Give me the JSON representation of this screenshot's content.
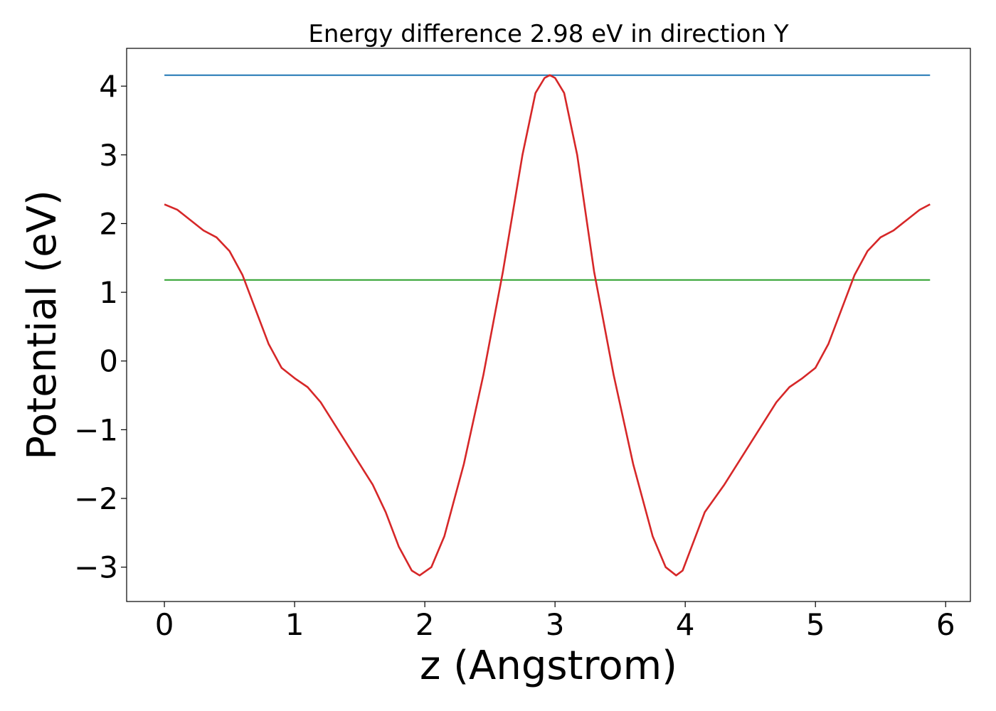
{
  "chart_data": {
    "type": "line",
    "title": "Energy difference 2.98 eV in direction Y",
    "xlabel": "z (Angstrom)",
    "ylabel": "Potential (eV)",
    "xlim": [
      -0.29,
      6.19
    ],
    "ylim": [
      -3.5,
      4.55
    ],
    "xticks": [
      0,
      1,
      2,
      3,
      4,
      5,
      6
    ],
    "yticks": [
      -3,
      -2,
      -1,
      0,
      1,
      2,
      3,
      4
    ],
    "ytick_labels": [
      "−3",
      "−2",
      "−1",
      "0",
      "1",
      "2",
      "3",
      "4"
    ],
    "grid": false,
    "series": [
      {
        "color": "#1f77b4",
        "x": [
          0,
          5.88
        ],
        "y": [
          4.16,
          4.16
        ]
      },
      {
        "color": "#2ca02c",
        "x": [
          0,
          5.88
        ],
        "y": [
          1.18,
          1.18
        ]
      },
      {
        "color": "#d62728",
        "x": [
          0,
          0.1,
          0.2,
          0.3,
          0.4,
          0.5,
          0.6,
          0.7,
          0.8,
          0.9,
          1.0,
          1.1,
          1.2,
          1.3,
          1.4,
          1.5,
          1.6,
          1.7,
          1.8,
          1.9,
          1.96,
          2.05,
          2.15,
          2.3,
          2.45,
          2.6,
          2.75,
          2.85,
          2.92,
          2.96,
          3.0,
          3.07,
          3.17,
          3.3,
          3.45,
          3.6,
          3.75,
          3.85,
          3.93,
          3.98,
          4.05,
          4.15,
          4.3,
          4.4,
          4.5,
          4.6,
          4.7,
          4.8,
          4.9,
          5.0,
          5.1,
          5.2,
          5.3,
          5.4,
          5.5,
          5.6,
          5.7,
          5.8,
          5.88
        ],
        "y": [
          2.28,
          2.2,
          2.05,
          1.9,
          1.8,
          1.6,
          1.25,
          0.75,
          0.25,
          -0.1,
          -0.25,
          -0.38,
          -0.6,
          -0.9,
          -1.2,
          -1.5,
          -1.8,
          -2.2,
          -2.7,
          -3.05,
          -3.12,
          -3.0,
          -2.55,
          -1.5,
          -0.2,
          1.3,
          3.0,
          3.9,
          4.12,
          4.16,
          4.12,
          3.9,
          3.0,
          1.3,
          -0.2,
          -1.5,
          -2.55,
          -3.0,
          -3.12,
          -3.05,
          -2.7,
          -2.2,
          -1.8,
          -1.5,
          -1.2,
          -0.9,
          -0.6,
          -0.38,
          -0.25,
          -0.1,
          0.25,
          0.75,
          1.25,
          1.6,
          1.8,
          1.9,
          2.05,
          2.2,
          2.28
        ]
      }
    ]
  }
}
